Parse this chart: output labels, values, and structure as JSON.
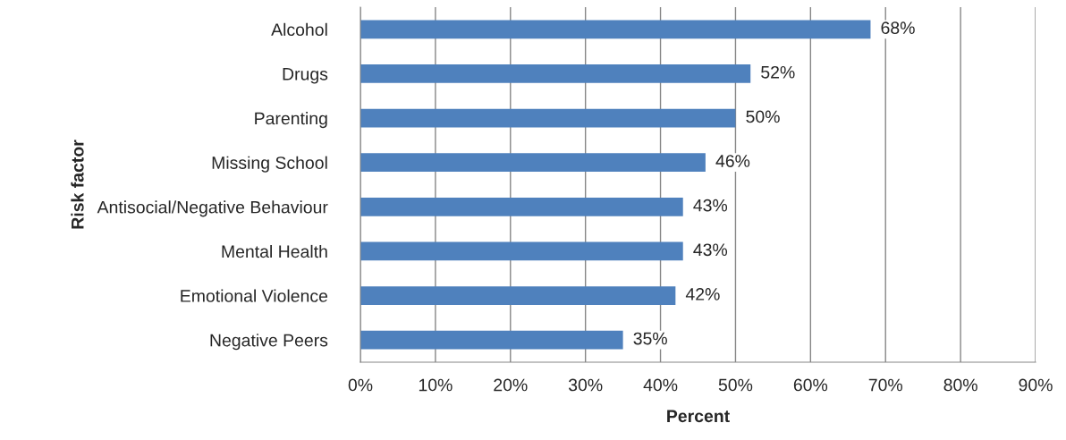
{
  "chart_data": {
    "type": "bar",
    "orientation": "horizontal",
    "xlabel": "Percent",
    "ylabel": "Risk factor",
    "categories": [
      "Alcohol",
      "Drugs",
      "Parenting",
      "Missing School",
      "Antisocial/Negative Behaviour",
      "Mental Health",
      "Emotional Violence",
      "Negative Peers"
    ],
    "values": [
      68,
      52,
      50,
      46,
      43,
      43,
      42,
      35
    ],
    "value_labels": [
      "68%",
      "52%",
      "50%",
      "46%",
      "43%",
      "43%",
      "42%",
      "35%"
    ],
    "color": "#4f81bd",
    "xlim": [
      0,
      90
    ],
    "xticks": [
      {
        "value": 0,
        "label": "0%"
      },
      {
        "value": 10,
        "label": "10%"
      },
      {
        "value": 20,
        "label": "20%"
      },
      {
        "value": 30,
        "label": "30%"
      },
      {
        "value": 40,
        "label": "40%"
      },
      {
        "value": 50,
        "label": "50%"
      },
      {
        "value": 60,
        "label": "60%"
      },
      {
        "value": 70,
        "label": "70%"
      },
      {
        "value": 80,
        "label": "80%"
      },
      {
        "value": 90,
        "label": "90%"
      }
    ],
    "grid": "x",
    "legend": false
  }
}
